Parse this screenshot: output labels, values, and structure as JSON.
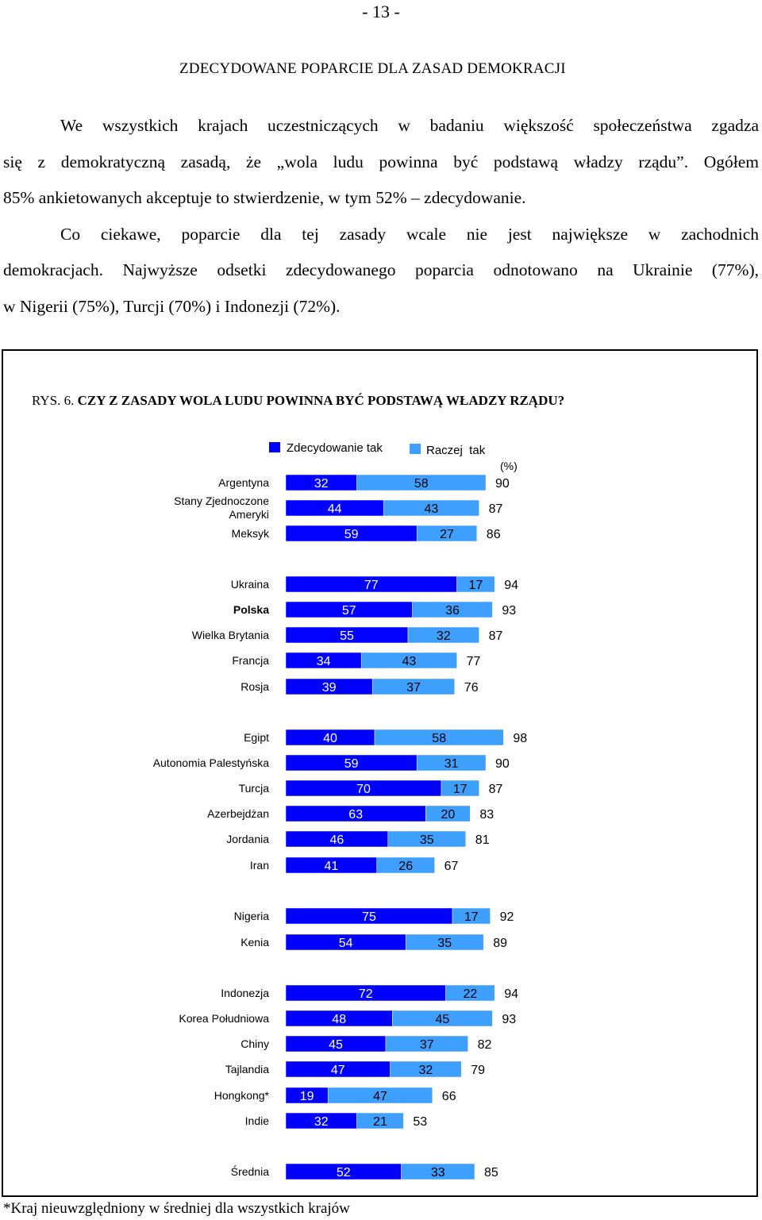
{
  "page_number": "- 13 -",
  "section_title": "ZDECYDOWANE POPARCIE DLA ZASAD DEMOKRACJI",
  "paragraph_lines": [
    "We wszystkich krajach uczestniczących w badaniu większość społeczeństwa zgadza",
    "się z demokratyczną zasadą, że „wola ludu powinna być podstawą władzy rządu”. Ogółem",
    "85% ankietowanych akceptuje to stwierdzenie, w tym 52% – zdecydowanie.",
    "Co ciekawe, poparcie dla tej zasady wcale nie jest największe w zachodnich",
    "demokracjach. Najwyższe odsetki zdecydowanego poparcia odnotowano na Ukrainie (77%),",
    "w Nigerii (75%), Turcji (70%) i Indonezji (72%)."
  ],
  "figure": {
    "label": "RYS. 6.",
    "title": "CZY Z ZASADY WOLA LUDU POWINNA BYĆ PODSTAWĄ WŁADZY RZĄDU?"
  },
  "footnote": "*Kraj nieuwzględniony w średniej dla wszystkich krajów",
  "chart_data": {
    "type": "bar",
    "orientation": "horizontal",
    "stacked": true,
    "unit_label": "(%)",
    "legend": [
      {
        "name": "Zdecydowanie tak",
        "color": "#0000ff"
      },
      {
        "name": "Raczej  tak",
        "color": "#3f9fff"
      }
    ],
    "groups": [
      [
        {
          "label": "Argentyna",
          "strong": 32,
          "somewhat": 58,
          "total": 90
        },
        {
          "label": "Stany Zjednoczone Ameryki",
          "label_lines": [
            "Stany Zjednoczone",
            "Ameryki"
          ],
          "strong": 44,
          "somewhat": 43,
          "total": 87
        },
        {
          "label": "Meksyk",
          "strong": 59,
          "somewhat": 27,
          "total": 86
        }
      ],
      [
        {
          "label": "Ukraina",
          "strong": 77,
          "somewhat": 17,
          "total": 94
        },
        {
          "label": "Polska",
          "strong": 57,
          "somewhat": 36,
          "total": 93,
          "bold": true
        },
        {
          "label": "Wielka Brytania",
          "strong": 55,
          "somewhat": 32,
          "total": 87
        },
        {
          "label": "Francja",
          "strong": 34,
          "somewhat": 43,
          "total": 77
        },
        {
          "label": "Rosja",
          "strong": 39,
          "somewhat": 37,
          "total": 76
        }
      ],
      [
        {
          "label": "Egipt",
          "strong": 40,
          "somewhat": 58,
          "total": 98
        },
        {
          "label": "Autonomia Palestyńska",
          "strong": 59,
          "somewhat": 31,
          "total": 90
        },
        {
          "label": "Turcja",
          "strong": 70,
          "somewhat": 17,
          "total": 87
        },
        {
          "label": "Azerbejdżan",
          "strong": 63,
          "somewhat": 20,
          "total": 83
        },
        {
          "label": "Jordania",
          "strong": 46,
          "somewhat": 35,
          "total": 81
        },
        {
          "label": "Iran",
          "strong": 41,
          "somewhat": 26,
          "total": 67
        }
      ],
      [
        {
          "label": "Nigeria",
          "strong": 75,
          "somewhat": 17,
          "total": 92
        },
        {
          "label": "Kenia",
          "strong": 54,
          "somewhat": 35,
          "total": 89
        }
      ],
      [
        {
          "label": "Indonezja",
          "strong": 72,
          "somewhat": 22,
          "total": 94
        },
        {
          "label": "Korea Południowa",
          "strong": 48,
          "somewhat": 45,
          "total": 93
        },
        {
          "label": "Chiny",
          "strong": 45,
          "somewhat": 37,
          "total": 82
        },
        {
          "label": "Tajlandia",
          "strong": 47,
          "somewhat": 32,
          "total": 79
        },
        {
          "label": "Hongkong*",
          "strong": 19,
          "somewhat": 47,
          "total": 66
        },
        {
          "label": "Indie",
          "strong": 32,
          "somewhat": 21,
          "total": 53
        }
      ],
      [
        {
          "label": "Średnia",
          "strong": 52,
          "somewhat": 33,
          "total": 85
        }
      ]
    ]
  }
}
